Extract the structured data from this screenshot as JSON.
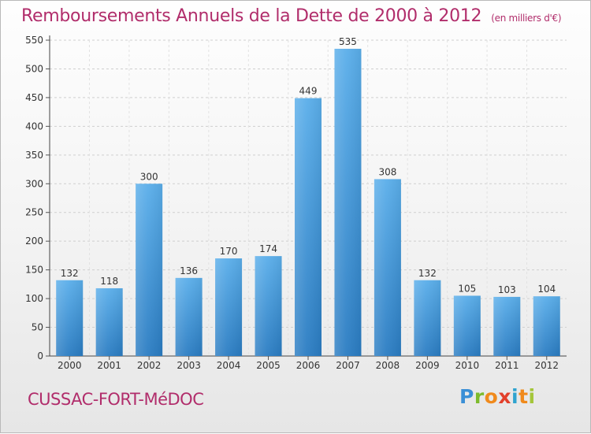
{
  "header": {
    "title": "Remboursements Annuels de la Dette de 2000 à 2012",
    "unit_note": "(en milliers d'€)"
  },
  "footer": {
    "commune": "CUSSAC-FORT-MéDOC",
    "logo_text": "Proxiti"
  },
  "colors": {
    "title": "#b12d6b",
    "bar_light": "#5aaeea",
    "bar_dark": "#2a7cc2"
  },
  "chart_data": {
    "type": "bar",
    "title": "Remboursements Annuels de la Dette de 2000 à 2012",
    "subtitle": "(en milliers d'€)",
    "categories": [
      "2000",
      "2001",
      "2002",
      "2003",
      "2004",
      "2005",
      "2006",
      "2007",
      "2008",
      "2009",
      "2010",
      "2011",
      "2012"
    ],
    "values": [
      132,
      118,
      300,
      136,
      170,
      174,
      449,
      535,
      308,
      132,
      105,
      103,
      104
    ],
    "ylim": [
      0,
      550
    ],
    "yticks": [
      0,
      50,
      100,
      150,
      200,
      250,
      300,
      350,
      400,
      450,
      500,
      550
    ],
    "grid": true,
    "data_labels": true
  }
}
